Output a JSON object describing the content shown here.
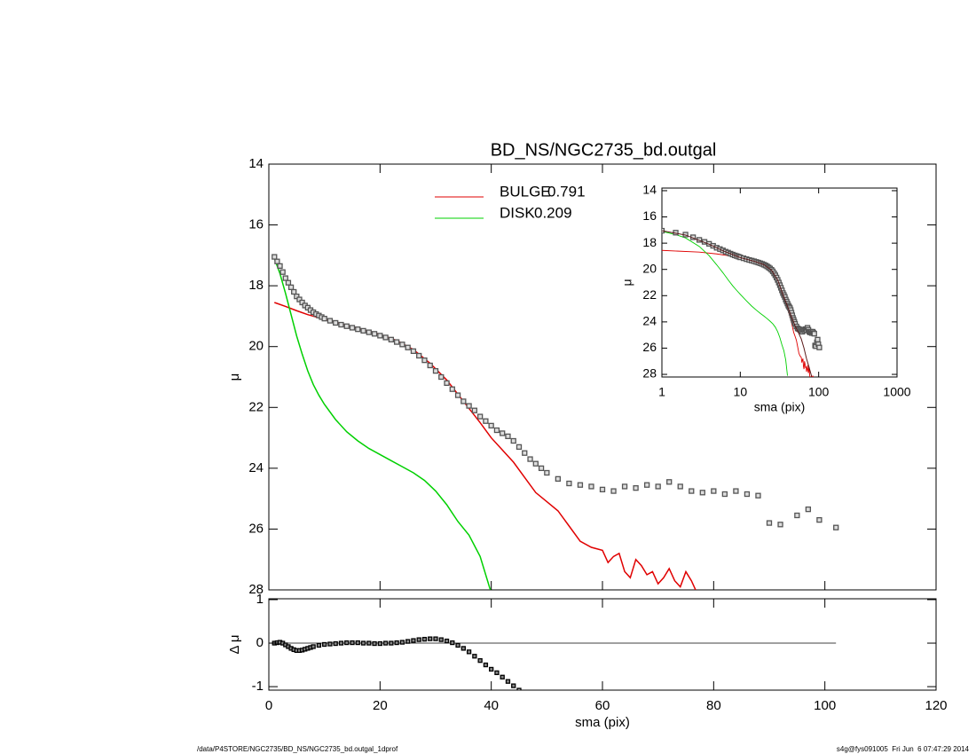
{
  "chart_data": [
    {
      "type": "profile",
      "title": "BD_NS/NGC2735_bd.outgal",
      "ylabel": "μ",
      "xlim": [
        0,
        120
      ],
      "xticks": [
        0,
        20,
        40,
        60,
        80,
        100,
        120
      ],
      "ylim": [
        28,
        14
      ],
      "yticks": [
        14,
        16,
        18,
        20,
        22,
        24,
        26,
        28
      ],
      "series": [
        {
          "name": "BULGE",
          "fraction": 0.791,
          "color": "#e00000",
          "x": [
            1,
            3,
            5,
            7,
            10,
            13,
            16,
            20,
            23,
            26,
            29,
            32,
            35,
            38,
            40,
            42,
            44,
            46,
            48,
            50,
            52,
            54,
            56,
            58,
            60,
            61,
            62,
            63,
            64,
            65,
            66,
            67,
            68,
            69,
            70,
            71,
            72,
            73,
            74,
            75,
            76,
            77,
            78,
            80,
            82,
            84,
            86
          ],
          "values": [
            18.55,
            18.68,
            18.82,
            18.95,
            19.1,
            19.25,
            19.4,
            19.6,
            19.8,
            20.1,
            20.55,
            21.1,
            21.8,
            22.5,
            23.0,
            23.4,
            23.8,
            24.3,
            24.8,
            25.1,
            25.4,
            25.9,
            26.4,
            26.6,
            26.7,
            27.1,
            26.9,
            26.8,
            27.4,
            27.6,
            27.0,
            27.2,
            27.5,
            27.4,
            27.8,
            27.6,
            27.3,
            27.7,
            27.9,
            27.4,
            27.7,
            28.1,
            28.4,
            28.2,
            28.5,
            28.1,
            28.3
          ]
        },
        {
          "name": "DISK",
          "fraction": 0.209,
          "color": "#00d000",
          "x": [
            1,
            1.5,
            2,
            3,
            4,
            5,
            6,
            7,
            8,
            9,
            10,
            12,
            14,
            16,
            18,
            20,
            22,
            24,
            26,
            28,
            30,
            32,
            34,
            36,
            38,
            40
          ],
          "values": [
            17.1,
            17.35,
            17.6,
            18.25,
            18.95,
            19.65,
            20.25,
            20.8,
            21.25,
            21.6,
            21.9,
            22.4,
            22.8,
            23.1,
            23.35,
            23.55,
            23.75,
            23.95,
            24.15,
            24.4,
            24.75,
            25.2,
            25.75,
            26.2,
            26.9,
            28.1
          ]
        }
      ],
      "points": {
        "color": "#555555",
        "x": [
          1,
          1.5,
          2,
          2.5,
          3,
          3.5,
          4,
          4.5,
          5,
          5.5,
          6,
          6.5,
          7,
          7.5,
          8,
          8.5,
          9,
          9.5,
          10,
          11,
          12,
          13,
          14,
          15,
          16,
          17,
          18,
          19,
          20,
          21,
          22,
          23,
          24,
          25,
          26,
          27,
          28,
          29,
          30,
          31,
          32,
          33,
          34,
          35,
          36,
          37,
          38,
          39,
          40,
          41,
          42,
          43,
          44,
          45,
          46,
          47,
          48,
          49,
          50,
          52,
          54,
          56,
          58,
          60,
          62,
          64,
          66,
          68,
          70,
          72,
          74,
          76,
          78,
          80,
          82,
          84,
          86,
          88,
          90,
          92,
          95,
          97,
          99,
          102
        ],
        "values": [
          17.05,
          17.2,
          17.35,
          17.55,
          17.75,
          17.9,
          18.05,
          18.2,
          18.35,
          18.45,
          18.55,
          18.65,
          18.72,
          18.8,
          18.87,
          18.93,
          18.98,
          19.03,
          19.08,
          19.15,
          19.22,
          19.28,
          19.33,
          19.38,
          19.43,
          19.48,
          19.53,
          19.58,
          19.64,
          19.7,
          19.77,
          19.85,
          19.93,
          20.03,
          20.15,
          20.3,
          20.45,
          20.62,
          20.8,
          21.0,
          21.2,
          21.4,
          21.6,
          21.8,
          21.95,
          22.1,
          22.3,
          22.45,
          22.6,
          22.75,
          22.85,
          22.95,
          23.1,
          23.3,
          23.5,
          23.7,
          23.85,
          24.0,
          24.15,
          24.35,
          24.5,
          24.55,
          24.6,
          24.7,
          24.75,
          24.6,
          24.65,
          24.55,
          24.6,
          24.45,
          24.6,
          24.75,
          24.8,
          24.75,
          24.85,
          24.75,
          24.85,
          24.9,
          25.8,
          25.85,
          25.55,
          25.35,
          25.7,
          25.95
        ]
      }
    },
    {
      "type": "residual",
      "ylabel": "Δ μ",
      "xlabel": "sma (pix)",
      "xlim": [
        0,
        120
      ],
      "xticks": [
        0,
        20,
        40,
        60,
        80,
        100,
        120
      ],
      "ylim": [
        -1.08,
        1.02
      ],
      "yticks": [
        -1,
        0,
        1
      ],
      "reference_line": {
        "value": 0,
        "x": [
          0,
          102
        ]
      },
      "points": {
        "color": "#000000",
        "x": [
          1,
          1.5,
          2,
          2.5,
          3,
          3.5,
          4,
          4.5,
          5,
          5.5,
          6,
          6.5,
          7,
          7.5,
          8,
          9,
          10,
          11,
          12,
          13,
          14,
          15,
          16,
          17,
          18,
          19,
          20,
          21,
          22,
          23,
          24,
          25,
          26,
          27,
          28,
          29,
          30,
          31,
          32,
          33,
          34,
          35,
          36,
          37,
          38,
          39,
          40,
          41,
          42,
          43,
          44,
          45
        ],
        "values": [
          0.0,
          0.01,
          0.02,
          0.0,
          -0.04,
          -0.08,
          -0.12,
          -0.15,
          -0.17,
          -0.17,
          -0.16,
          -0.14,
          -0.12,
          -0.1,
          -0.08,
          -0.05,
          -0.03,
          -0.02,
          -0.01,
          0.0,
          0.01,
          0.01,
          0.01,
          0.0,
          0.0,
          -0.01,
          -0.01,
          0.0,
          0.0,
          0.01,
          0.02,
          0.04,
          0.06,
          0.08,
          0.09,
          0.1,
          0.1,
          0.08,
          0.05,
          0.01,
          -0.05,
          -0.12,
          -0.2,
          -0.3,
          -0.4,
          -0.5,
          -0.6,
          -0.68,
          -0.78,
          -0.88,
          -0.98,
          -1.08
        ]
      }
    },
    {
      "type": "log-profile",
      "ylabel": "μ",
      "xlabel": "sma (pix)",
      "log_x": true,
      "xlim": [
        1,
        1000
      ],
      "xticks": [
        1,
        10,
        100,
        1000
      ],
      "ylim": [
        28.2,
        13.8
      ],
      "yticks": [
        14,
        16,
        18,
        20,
        22,
        24,
        26,
        28
      ],
      "model": {
        "color": "#5a1a1a",
        "x": [
          1,
          2,
          4,
          6,
          10,
          15,
          20,
          25,
          30,
          35,
          40,
          45,
          50,
          55,
          60,
          65,
          70,
          75,
          80,
          85
        ],
        "values": [
          17.05,
          17.38,
          18.08,
          18.58,
          19.1,
          19.38,
          19.64,
          20.05,
          20.8,
          21.9,
          22.8,
          23.6,
          24.3,
          24.8,
          25.3,
          26.0,
          26.8,
          27.4,
          28.0,
          28.6
        ]
      }
    }
  ],
  "footer": {
    "left": "/data/P4STORE/NGC2735/BD_NS/NGC2735_bd.outgal_1dprof",
    "right": "s4g@fys091005  Fri Jun  6 07:47:29 2014"
  }
}
